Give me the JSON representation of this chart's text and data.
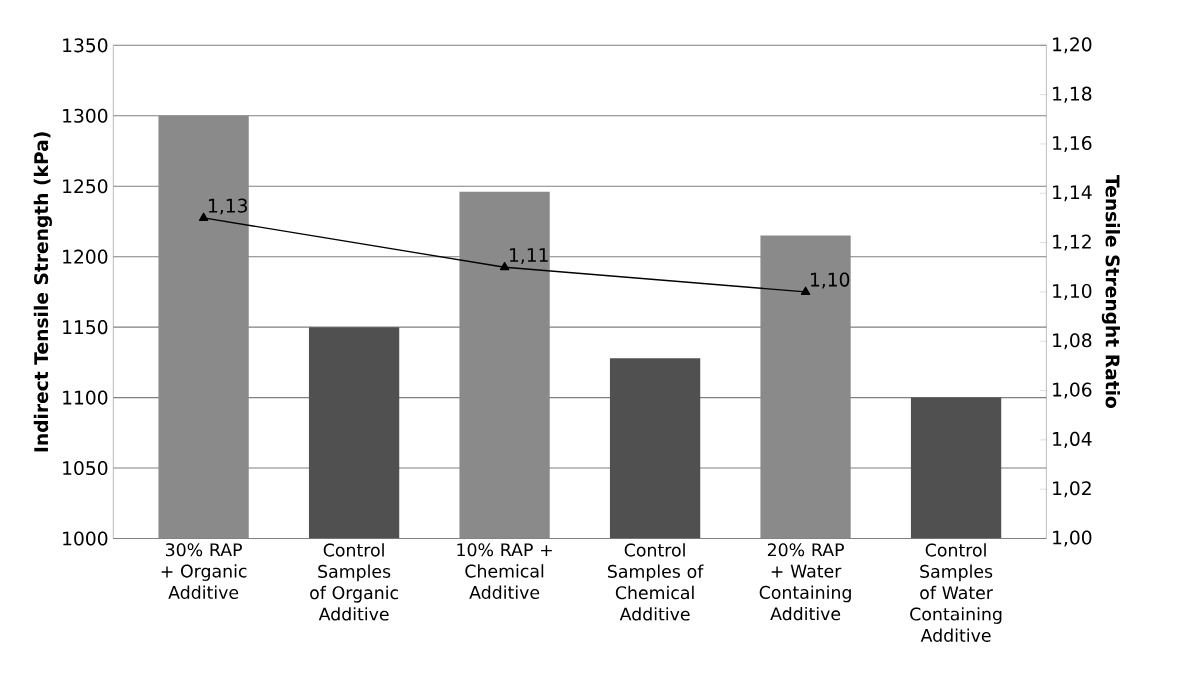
{
  "chart_data": {
    "type": "bar",
    "ylabel": "Indirect Tensile Strength (kPa)",
    "y2label": "Tensile Strenght Ratio",
    "categories": [
      "30% RAP + Organic Additive",
      "Control Samples of Organic Additive",
      "10% RAP + Chemical Additive",
      "Control Samples of Chemical Additive",
      "20% RAP + Water Containing Additive",
      "Control Samples of Water Containing Additive"
    ],
    "series": [
      {
        "color": "#8a8a8a",
        "values": [
          1300,
          null,
          1246,
          null,
          1215,
          null
        ]
      },
      {
        "color": "#505050",
        "values": [
          null,
          1150,
          null,
          1128,
          null,
          1100
        ]
      },
      {
        "type": "line",
        "axis": "y2",
        "color": "#000000",
        "marker": "triangle",
        "line_style": "solid",
        "values": [
          1.13,
          null,
          1.11,
          null,
          1.1,
          null
        ],
        "value_labels": [
          "1,13",
          null,
          "1,11",
          null,
          "1,10",
          null
        ]
      }
    ],
    "ylim": [
      1000,
      1350
    ],
    "yticks": [
      1000,
      1050,
      1100,
      1150,
      1200,
      1250,
      1300,
      1350
    ],
    "y2lim": [
      1.0,
      1.2
    ],
    "y2ticks": [
      {
        "value": 1.0,
        "label": "1,00"
      },
      {
        "value": 1.02,
        "label": "1,02"
      },
      {
        "value": 1.04,
        "label": "1,04"
      },
      {
        "value": 1.06,
        "label": "1,06"
      },
      {
        "value": 1.08,
        "label": "1,08"
      },
      {
        "value": 1.1,
        "label": "1,10"
      },
      {
        "value": 1.12,
        "label": "1,12"
      },
      {
        "value": 1.14,
        "label": "1,14"
      },
      {
        "value": 1.16,
        "label": "1,16"
      },
      {
        "value": 1.18,
        "label": "1,18"
      },
      {
        "value": 1.2,
        "label": "1,20"
      }
    ],
    "grid": "y"
  }
}
